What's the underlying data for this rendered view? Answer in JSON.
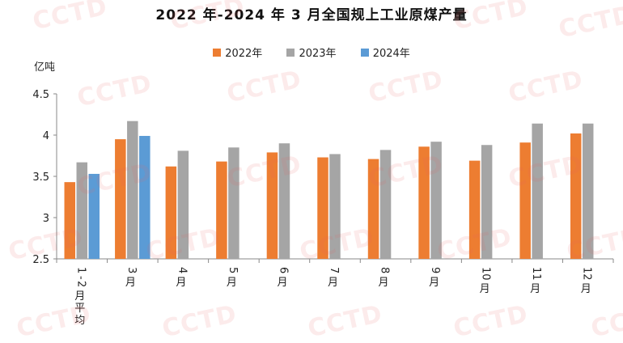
{
  "chart_data": {
    "type": "bar",
    "title": "2022 年-2024 年 3 月全国规上工业原煤产量",
    "ylabel": "亿吨",
    "ylim": [
      2.5,
      4.5
    ],
    "yticks": [
      "2.5",
      "3",
      "3.5",
      "4",
      "4.5"
    ],
    "categories": [
      "1-2月平均",
      "3月",
      "4月",
      "5月",
      "6月",
      "7月",
      "8月",
      "9月",
      "10月",
      "11月",
      "12月"
    ],
    "series": [
      {
        "name": "2022年",
        "color": "#ED7D31",
        "values": [
          3.43,
          3.95,
          3.62,
          3.68,
          3.79,
          3.73,
          3.71,
          3.86,
          3.69,
          3.91,
          4.02
        ]
      },
      {
        "name": "2023年",
        "color": "#A5A5A5",
        "values": [
          3.67,
          4.17,
          3.81,
          3.85,
          3.9,
          3.77,
          3.82,
          3.92,
          3.88,
          4.14,
          4.14
        ]
      },
      {
        "name": "2024年",
        "color": "#5B9BD5",
        "values": [
          3.53,
          3.99,
          null,
          null,
          null,
          null,
          null,
          null,
          null,
          null,
          null
        ]
      }
    ],
    "legend_position": "top",
    "grid": false
  },
  "watermark": "CCTD"
}
